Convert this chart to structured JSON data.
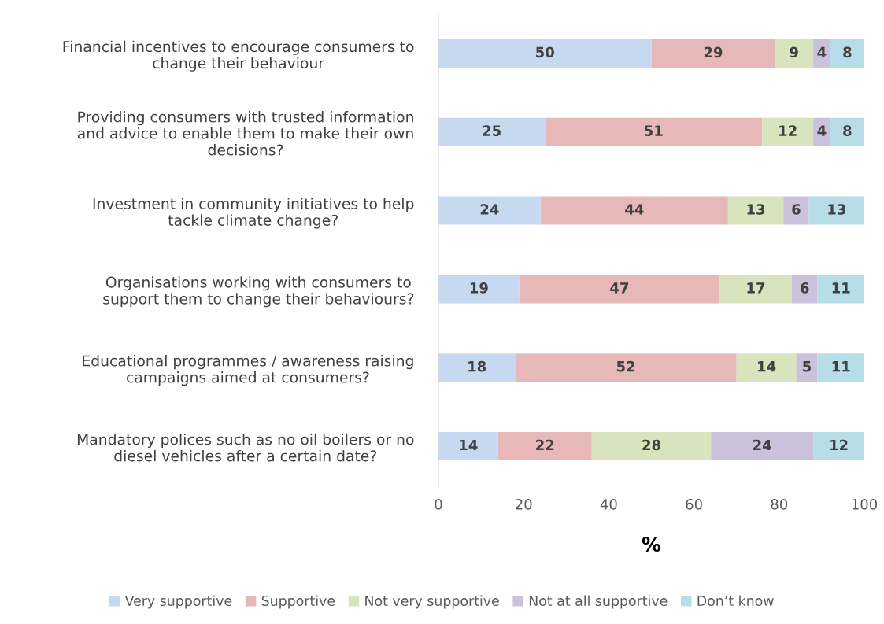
{
  "chart_data": {
    "type": "bar",
    "orientation": "horizontal",
    "stacked": true,
    "xlabel": "%",
    "categories": [
      "Financial incentives to encourage consumers to\nchange their behaviour",
      "Providing consumers with trusted information\nand advice to enable them to make their own\ndecisions?",
      "Investment in community initiatives to help\ntackle climate change?",
      "Organisations working with consumers to\nsupport them to change their behaviours?",
      "Educational programmes / awareness raising\ncampaigns aimed at consumers?",
      "Mandatory polices such as no oil boilers or no\ndiesel vehicles after a certain date?"
    ],
    "series": [
      {
        "name": "Very supportive",
        "color": "#c6d9f1",
        "values": [
          50,
          25,
          24,
          19,
          18,
          14
        ]
      },
      {
        "name": "Supportive",
        "color": "#e6b9b8",
        "values": [
          29,
          51,
          44,
          47,
          52,
          22
        ]
      },
      {
        "name": "Not very supportive",
        "color": "#d7e4bd",
        "values": [
          9,
          12,
          13,
          17,
          14,
          28
        ]
      },
      {
        "name": "Not at all supportive",
        "color": "#ccc1da",
        "values": [
          4,
          4,
          6,
          6,
          5,
          24
        ]
      },
      {
        "name": "Don’t know",
        "color": "#b7dee8",
        "values": [
          8,
          8,
          13,
          11,
          11,
          12
        ]
      }
    ],
    "xlim": [
      0,
      100
    ],
    "xticks": [
      0,
      20,
      40,
      60,
      80,
      100
    ],
    "data_labels": true,
    "legend": "bottom",
    "grid": false
  }
}
